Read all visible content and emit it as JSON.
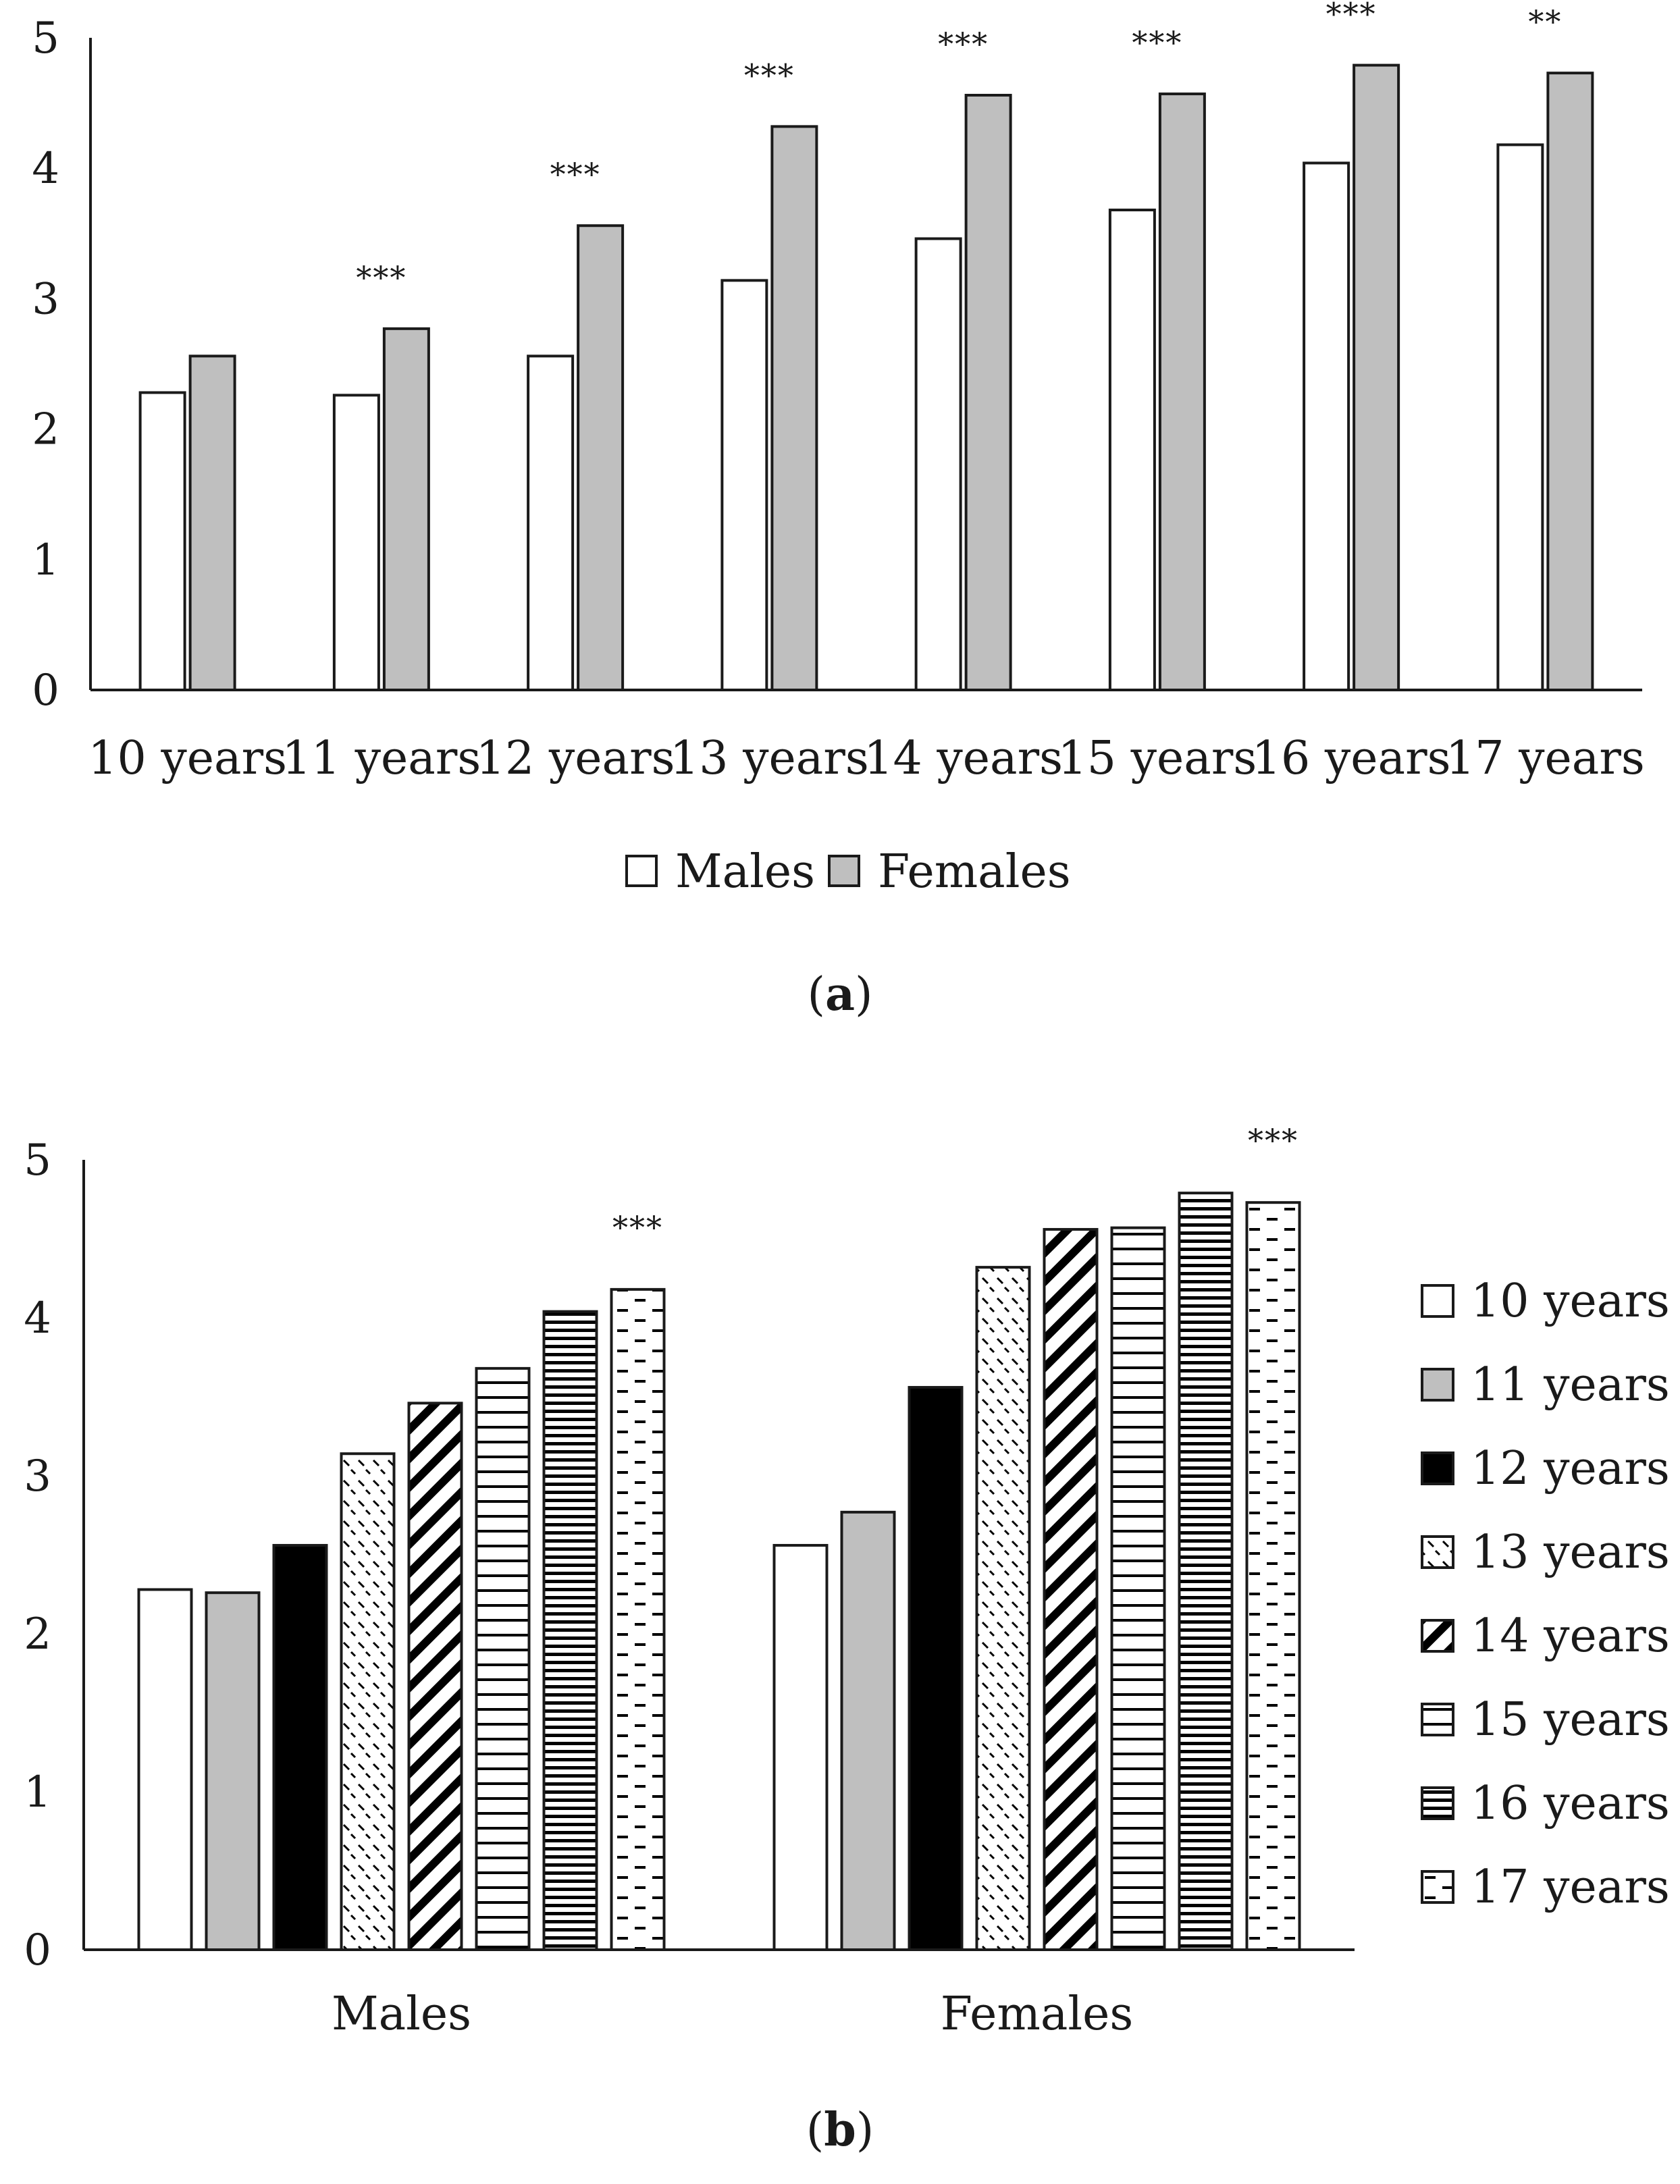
{
  "colors": {
    "white": "#ffffff",
    "gray": "#bfbfbf",
    "black": "#000000",
    "stroke": "#1a1a1a"
  },
  "chart_data": [
    {
      "type": "bar",
      "panel_label": "a",
      "categories": [
        "10 years",
        "11 years",
        "12 years",
        "13 years",
        "14 years",
        "15 years",
        "16 years",
        "17 years"
      ],
      "series": [
        {
          "name": "Males",
          "fill": "#ffffff",
          "values": [
            2.28,
            2.26,
            2.56,
            3.14,
            3.46,
            3.68,
            4.04,
            4.18
          ]
        },
        {
          "name": "Females",
          "fill": "#bfbfbf",
          "values": [
            2.56,
            2.77,
            3.56,
            4.32,
            4.56,
            4.57,
            4.79,
            4.73
          ]
        }
      ],
      "significance": [
        "",
        "***",
        "***",
        "***",
        "***",
        "***",
        "***",
        "**"
      ],
      "yticks": [
        "0",
        "1",
        "2",
        "3",
        "4",
        "5"
      ],
      "ylim": [
        0,
        5
      ],
      "legend": [
        "Males",
        "Females"
      ],
      "legend_position": "bottom",
      "grid": false
    },
    {
      "type": "bar",
      "panel_label": "b",
      "categories": [
        "Males",
        "Females"
      ],
      "series": [
        {
          "name": "10 years",
          "pattern": "white",
          "values": [
            2.28,
            2.56
          ]
        },
        {
          "name": "11 years",
          "pattern": "gray",
          "values": [
            2.26,
            2.77
          ]
        },
        {
          "name": "12 years",
          "pattern": "black",
          "values": [
            2.56,
            3.56
          ]
        },
        {
          "name": "13 years",
          "pattern": "dashes",
          "values": [
            3.14,
            4.32
          ]
        },
        {
          "name": "14 years",
          "pattern": "diagonal",
          "values": [
            3.46,
            4.56
          ]
        },
        {
          "name": "15 years",
          "pattern": "horizontal",
          "values": [
            3.68,
            4.57
          ]
        },
        {
          "name": "16 years",
          "pattern": "horizontal-dense",
          "values": [
            4.04,
            4.79
          ]
        },
        {
          "name": "17 years",
          "pattern": "dashed-horizontal",
          "values": [
            4.18,
            4.73
          ]
        }
      ],
      "significance": [
        "***",
        "***"
      ],
      "yticks": [
        "0",
        "1",
        "2",
        "3",
        "4",
        "5"
      ],
      "ylim": [
        0,
        5
      ],
      "legend": [
        "10 years",
        "11 years",
        "12 years",
        "13 years",
        "14 years",
        "15 years",
        "16 years",
        "17 years"
      ],
      "legend_position": "right",
      "grid": false
    }
  ]
}
